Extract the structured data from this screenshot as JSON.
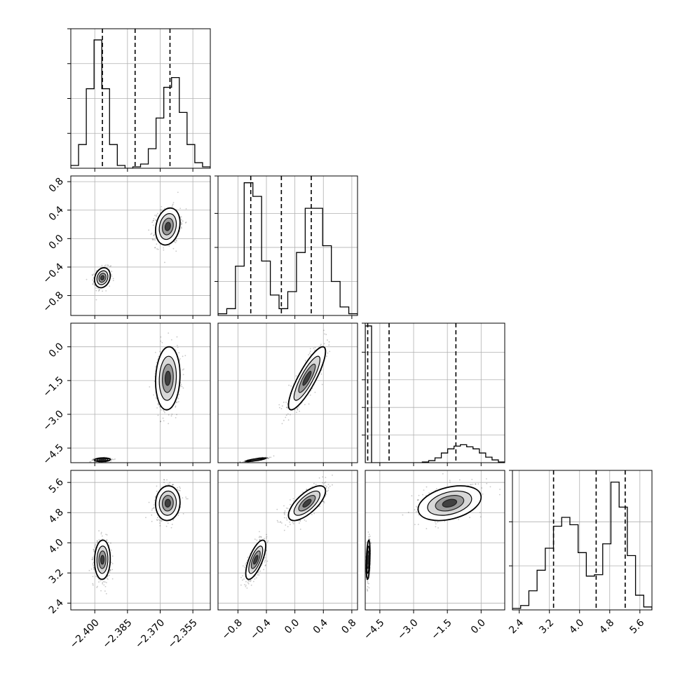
{
  "chart_data": {
    "type": "corner",
    "grid": true,
    "dimensions": 4,
    "ranges": [
      [
        -2.411,
        -2.347
      ],
      [
        -1.08,
        0.88
      ],
      [
        -5.15,
        1.05
      ],
      [
        2.22,
        5.92
      ]
    ],
    "ticks": [
      [
        "−2.400",
        "−2.385",
        "−2.370",
        "−2.355"
      ],
      [
        "−0.8",
        "−0.4",
        "0.0",
        "0.4",
        "0.8"
      ],
      [
        "−4.5",
        "−3.0",
        "−1.5",
        "0.0"
      ],
      [
        "2.4",
        "3.2",
        "4.0",
        "4.8",
        "5.6"
      ]
    ],
    "tick_values": [
      [
        -2.4,
        -2.385,
        -2.37,
        -2.355
      ],
      [
        -0.8,
        -0.4,
        0.0,
        0.4,
        0.8
      ],
      [
        -4.5,
        -3.0,
        -1.5,
        0.0
      ],
      [
        2.4,
        3.2,
        4.0,
        4.8,
        5.6
      ]
    ],
    "quantiles": [
      [
        -2.3965,
        -2.3815,
        -2.3655
      ],
      [
        -0.62,
        -0.19,
        0.23
      ],
      [
        -5.04,
        -4.09,
        -1.12
      ],
      [
        3.31,
        4.44,
        5.21
      ]
    ],
    "histograms": [
      {
        "dimension": 0,
        "counts": [
          0.02,
          0.17,
          0.57,
          0.92,
          0.57,
          0.17,
          0.02,
          0.0,
          0.01,
          0.03,
          0.14,
          0.36,
          0.58,
          0.65,
          0.4,
          0.17,
          0.04,
          0.01
        ],
        "ymax": 1.0,
        "y_gridlines": [
          0.25,
          0.5,
          0.75
        ]
      },
      {
        "dimension": 1,
        "counts": [
          0.01,
          0.04,
          0.29,
          0.78,
          0.7,
          0.32,
          0.12,
          0.04,
          0.14,
          0.37,
          0.63,
          0.63,
          0.41,
          0.2,
          0.05,
          0.01
        ],
        "ymax": 0.82,
        "y_gridlines": [
          0.2,
          0.4,
          0.6
        ]
      },
      {
        "dimension": 2,
        "counts": [
          0.99,
          0.0,
          0.0,
          0.0,
          0.0,
          0.0,
          0.0,
          0.0,
          0.0,
          0.005,
          0.015,
          0.035,
          0.07,
          0.1,
          0.12,
          0.13,
          0.115,
          0.1,
          0.07,
          0.04,
          0.02,
          0.005
        ],
        "ymax": 1.01,
        "y_gridlines": [
          0.2,
          0.4,
          0.6,
          0.8
        ]
      },
      {
        "dimension": 3,
        "counts": [
          0.01,
          0.03,
          0.13,
          0.27,
          0.42,
          0.57,
          0.63,
          0.58,
          0.39,
          0.23,
          0.24,
          0.45,
          0.87,
          0.7,
          0.37,
          0.1,
          0.02
        ],
        "ymax": 0.95,
        "y_gridlines": [
          0.3,
          0.6
        ]
      }
    ],
    "clusters": [
      {
        "center": [
          -2.3965,
          -0.55,
          -5.02,
          3.55
        ],
        "sd": [
          0.0018,
          0.07,
          0.04,
          0.26
        ]
      },
      {
        "center": [
          -2.3665,
          0.17,
          -1.4,
          5.05
        ],
        "sd": [
          0.0028,
          0.13,
          0.7,
          0.23
        ]
      }
    ],
    "pair_correlations": {
      "0-1": 0.2,
      "0-2": 0.1,
      "0-3": 0.05,
      "1-2": 0.85,
      "1-3": 0.7,
      "2-3": 0.35
    }
  }
}
